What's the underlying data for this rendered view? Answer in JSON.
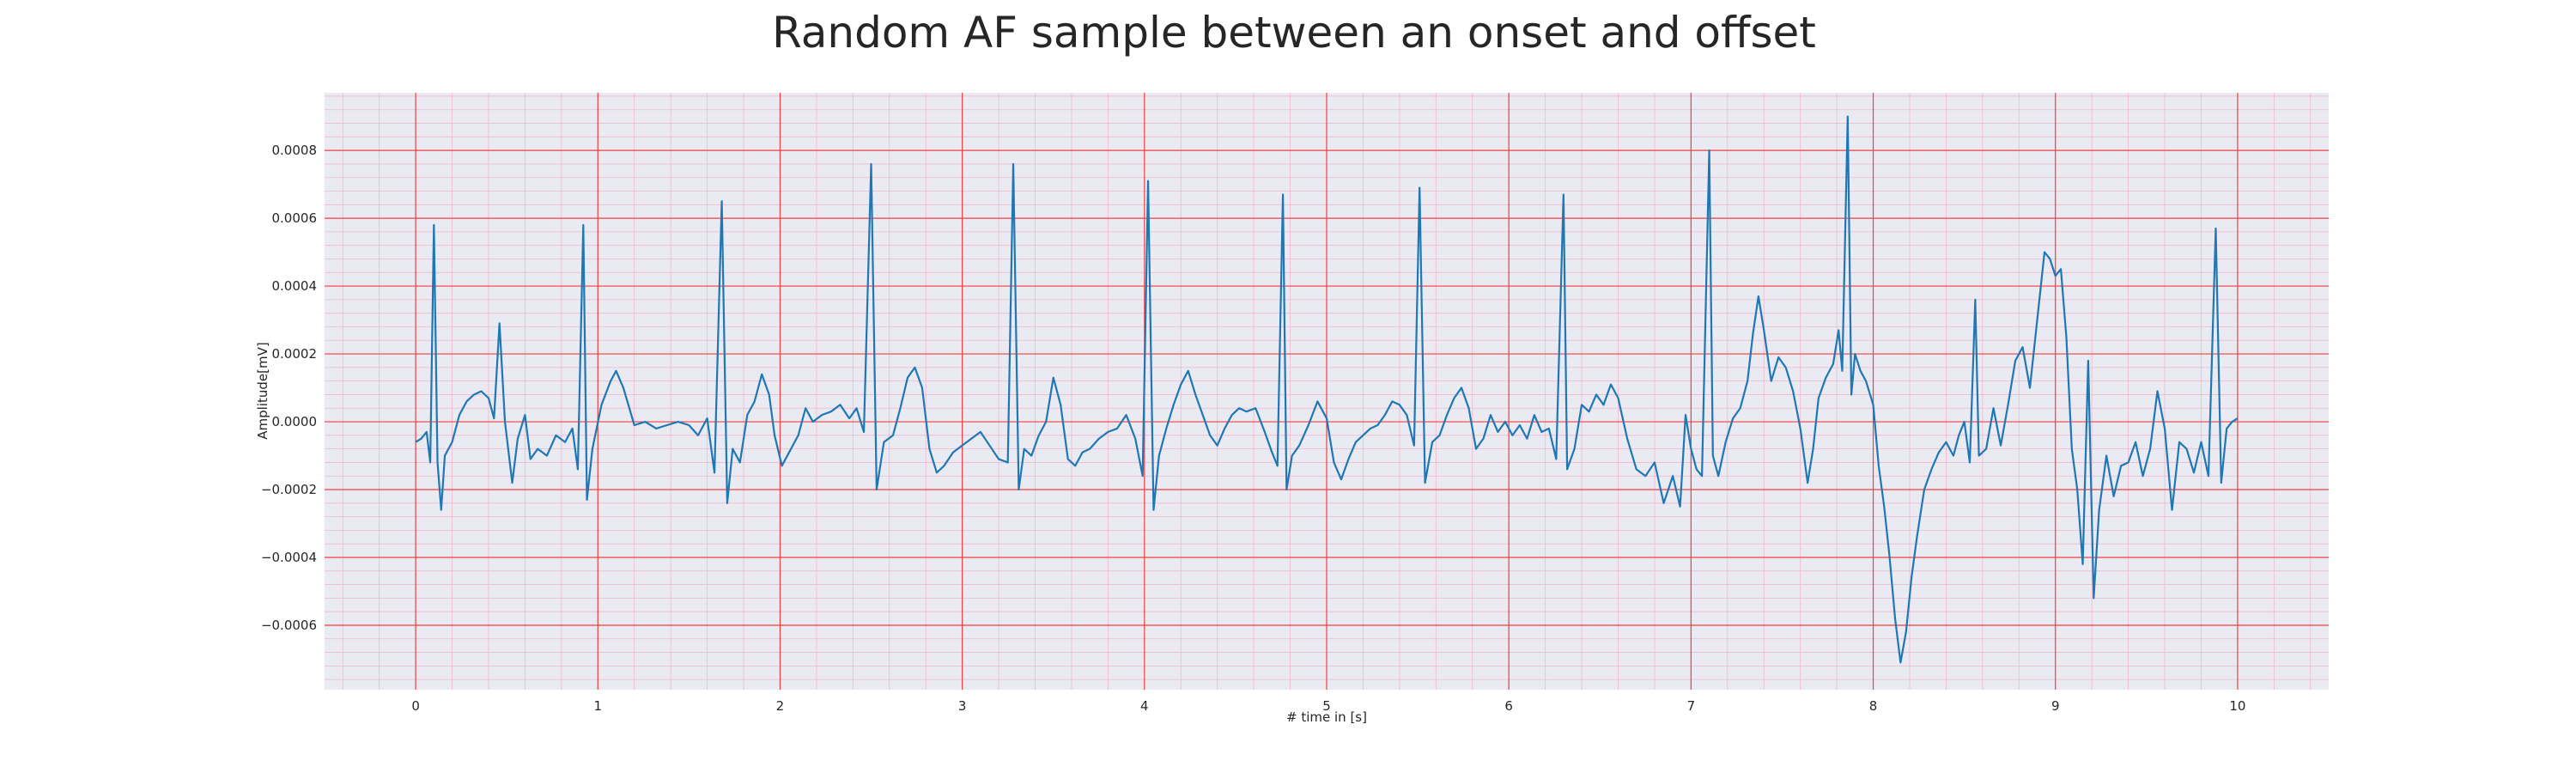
{
  "chart_data": {
    "type": "line",
    "title": "Random AF sample between an onset and offset",
    "xlabel": "# time in [s]",
    "ylabel": "Amplitude[mV]",
    "xlim": [
      -0.5,
      10.5
    ],
    "ylim": [
      -0.00079,
      0.00097
    ],
    "x_ticks": [
      0,
      1,
      2,
      3,
      4,
      5,
      6,
      7,
      8,
      9,
      10
    ],
    "x_tick_labels": [
      "0",
      "1",
      "2",
      "3",
      "4",
      "5",
      "6",
      "7",
      "8",
      "9",
      "10"
    ],
    "y_ticks": [
      -0.0006,
      -0.0004,
      -0.0002,
      0.0,
      0.0002,
      0.0004,
      0.0006,
      0.0008
    ],
    "y_tick_labels": [
      "−0.0006",
      "−0.0004",
      "−0.0002",
      "0.0000",
      "0.0002",
      "0.0004",
      "0.0006",
      "0.0008"
    ],
    "grid": true,
    "colors": {
      "line": "#1f77b4",
      "plot_bg": "#eaeaf2",
      "major_grid": "#f04040",
      "minor_grid": "#f2b8cc"
    },
    "series": [
      {
        "points": [
          [
            0.0,
            -6e-05
          ],
          [
            0.03,
            -5e-05
          ],
          [
            0.06,
            -3e-05
          ],
          [
            0.08,
            -0.00012
          ],
          [
            0.1,
            0.00058
          ],
          [
            0.12,
            -0.00012
          ],
          [
            0.14,
            -0.00026
          ],
          [
            0.16,
            -0.0001
          ],
          [
            0.2,
            -6e-05
          ],
          [
            0.24,
            2e-05
          ],
          [
            0.28,
            6e-05
          ],
          [
            0.32,
            8e-05
          ],
          [
            0.36,
            9e-05
          ],
          [
            0.4,
            7e-05
          ],
          [
            0.43,
            1e-05
          ],
          [
            0.46,
            0.00029
          ],
          [
            0.49,
            0.0
          ],
          [
            0.53,
            -0.00018
          ],
          [
            0.56,
            -5e-05
          ],
          [
            0.6,
            2e-05
          ],
          [
            0.63,
            -0.00011
          ],
          [
            0.67,
            -8e-05
          ],
          [
            0.72,
            -0.0001
          ],
          [
            0.77,
            -4e-05
          ],
          [
            0.82,
            -6e-05
          ],
          [
            0.86,
            -2e-05
          ],
          [
            0.89,
            -0.00014
          ],
          [
            0.92,
            0.00058
          ],
          [
            0.94,
            -0.00023
          ],
          [
            0.97,
            -8e-05
          ],
          [
            1.02,
            5e-05
          ],
          [
            1.07,
            0.00012
          ],
          [
            1.1,
            0.00015
          ],
          [
            1.14,
            0.0001
          ],
          [
            1.2,
            -1e-05
          ],
          [
            1.26,
            0.0
          ],
          [
            1.32,
            -2e-05
          ],
          [
            1.38,
            -1e-05
          ],
          [
            1.44,
            0.0
          ],
          [
            1.5,
            -1e-05
          ],
          [
            1.55,
            -4e-05
          ],
          [
            1.6,
            1e-05
          ],
          [
            1.64,
            -0.00015
          ],
          [
            1.68,
            0.00065
          ],
          [
            1.71,
            -0.00024
          ],
          [
            1.74,
            -8e-05
          ],
          [
            1.78,
            -0.00012
          ],
          [
            1.82,
            2e-05
          ],
          [
            1.86,
            6e-05
          ],
          [
            1.9,
            0.00014
          ],
          [
            1.94,
            8e-05
          ],
          [
            1.97,
            -4e-05
          ],
          [
            2.01,
            -0.00013
          ],
          [
            2.05,
            -9e-05
          ],
          [
            2.1,
            -4e-05
          ],
          [
            2.14,
            4e-05
          ],
          [
            2.18,
            0.0
          ],
          [
            2.23,
            2e-05
          ],
          [
            2.28,
            3e-05
          ],
          [
            2.33,
            5e-05
          ],
          [
            2.38,
            1e-05
          ],
          [
            2.42,
            4e-05
          ],
          [
            2.46,
            -3e-05
          ],
          [
            2.5,
            0.00076
          ],
          [
            2.53,
            -0.0002
          ],
          [
            2.57,
            -6e-05
          ],
          [
            2.62,
            -4e-05
          ],
          [
            2.66,
            4e-05
          ],
          [
            2.7,
            0.00013
          ],
          [
            2.74,
            0.00016
          ],
          [
            2.78,
            0.0001
          ],
          [
            2.82,
            -8e-05
          ],
          [
            2.86,
            -0.00015
          ],
          [
            2.9,
            -0.00013
          ],
          [
            2.95,
            -9e-05
          ],
          [
            3.0,
            -7e-05
          ],
          [
            3.05,
            -5e-05
          ],
          [
            3.1,
            -3e-05
          ],
          [
            3.15,
            -7e-05
          ],
          [
            3.2,
            -0.00011
          ],
          [
            3.25,
            -0.00012
          ],
          [
            3.28,
            0.00076
          ],
          [
            3.31,
            -0.0002
          ],
          [
            3.34,
            -8e-05
          ],
          [
            3.38,
            -0.0001
          ],
          [
            3.42,
            -4e-05
          ],
          [
            3.46,
            0.0
          ],
          [
            3.5,
            0.00013
          ],
          [
            3.54,
            5e-05
          ],
          [
            3.58,
            -0.00011
          ],
          [
            3.62,
            -0.00013
          ],
          [
            3.66,
            -9e-05
          ],
          [
            3.7,
            -8e-05
          ],
          [
            3.75,
            -5e-05
          ],
          [
            3.8,
            -3e-05
          ],
          [
            3.85,
            -2e-05
          ],
          [
            3.9,
            2e-05
          ],
          [
            3.95,
            -5e-05
          ],
          [
            3.99,
            -0.00016
          ],
          [
            4.02,
            0.00071
          ],
          [
            4.05,
            -0.00026
          ],
          [
            4.08,
            -0.0001
          ],
          [
            4.12,
            -2e-05
          ],
          [
            4.16,
            5e-05
          ],
          [
            4.2,
            0.00011
          ],
          [
            4.24,
            0.00015
          ],
          [
            4.28,
            8e-05
          ],
          [
            4.32,
            2e-05
          ],
          [
            4.36,
            -4e-05
          ],
          [
            4.4,
            -7e-05
          ],
          [
            4.44,
            -2e-05
          ],
          [
            4.48,
            2e-05
          ],
          [
            4.52,
            4e-05
          ],
          [
            4.56,
            3e-05
          ],
          [
            4.61,
            4e-05
          ],
          [
            4.66,
            -3e-05
          ],
          [
            4.7,
            -9e-05
          ],
          [
            4.73,
            -0.00013
          ],
          [
            4.76,
            0.00067
          ],
          [
            4.78,
            -0.0002
          ],
          [
            4.81,
            -0.0001
          ],
          [
            4.85,
            -7e-05
          ],
          [
            4.9,
            -1e-05
          ],
          [
            4.95,
            6e-05
          ],
          [
            5.0,
            1e-05
          ],
          [
            5.04,
            -0.00012
          ],
          [
            5.08,
            -0.00017
          ],
          [
            5.12,
            -0.00011
          ],
          [
            5.16,
            -6e-05
          ],
          [
            5.2,
            -4e-05
          ],
          [
            5.24,
            -2e-05
          ],
          [
            5.28,
            -1e-05
          ],
          [
            5.32,
            2e-05
          ],
          [
            5.36,
            6e-05
          ],
          [
            5.4,
            5e-05
          ],
          [
            5.44,
            2e-05
          ],
          [
            5.48,
            -7e-05
          ],
          [
            5.51,
            0.00069
          ],
          [
            5.54,
            -0.00018
          ],
          [
            5.58,
            -6e-05
          ],
          [
            5.62,
            -4e-05
          ],
          [
            5.66,
            2e-05
          ],
          [
            5.7,
            7e-05
          ],
          [
            5.74,
            0.0001
          ],
          [
            5.78,
            4e-05
          ],
          [
            5.82,
            -8e-05
          ],
          [
            5.86,
            -5e-05
          ],
          [
            5.9,
            2e-05
          ],
          [
            5.94,
            -3e-05
          ],
          [
            5.98,
            0.0
          ],
          [
            6.02,
            -4e-05
          ],
          [
            6.06,
            -1e-05
          ],
          [
            6.1,
            -5e-05
          ],
          [
            6.14,
            2e-05
          ],
          [
            6.18,
            -3e-05
          ],
          [
            6.22,
            -2e-05
          ],
          [
            6.26,
            -0.00011
          ],
          [
            6.3,
            0.00067
          ],
          [
            6.32,
            -0.00014
          ],
          [
            6.36,
            -8e-05
          ],
          [
            6.4,
            5e-05
          ],
          [
            6.44,
            3e-05
          ],
          [
            6.48,
            8e-05
          ],
          [
            6.52,
            5e-05
          ],
          [
            6.56,
            0.00011
          ],
          [
            6.6,
            7e-05
          ],
          [
            6.65,
            -5e-05
          ],
          [
            6.7,
            -0.00014
          ],
          [
            6.75,
            -0.00016
          ],
          [
            6.8,
            -0.00012
          ],
          [
            6.85,
            -0.00024
          ],
          [
            6.9,
            -0.00016
          ],
          [
            6.94,
            -0.00025
          ],
          [
            6.97,
            2e-05
          ],
          [
            7.0,
            -8e-05
          ],
          [
            7.03,
            -0.00014
          ],
          [
            7.06,
            -0.00016
          ],
          [
            7.1,
            0.0008
          ],
          [
            7.12,
            -0.0001
          ],
          [
            7.15,
            -0.00016
          ],
          [
            7.19,
            -6e-05
          ],
          [
            7.23,
            1e-05
          ],
          [
            7.27,
            4e-05
          ],
          [
            7.31,
            0.00012
          ],
          [
            7.34,
            0.00026
          ],
          [
            7.37,
            0.00037
          ],
          [
            7.4,
            0.00027
          ],
          [
            7.44,
            0.00012
          ],
          [
            7.48,
            0.00019
          ],
          [
            7.52,
            0.00016
          ],
          [
            7.56,
            9e-05
          ],
          [
            7.6,
            -2e-05
          ],
          [
            7.64,
            -0.00018
          ],
          [
            7.67,
            -8e-05
          ],
          [
            7.7,
            7e-05
          ],
          [
            7.74,
            0.00013
          ],
          [
            7.78,
            0.00017
          ],
          [
            7.81,
            0.00027
          ],
          [
            7.83,
            0.00015
          ],
          [
            7.86,
            0.0009
          ],
          [
            7.88,
            8e-05
          ],
          [
            7.9,
            0.0002
          ],
          [
            7.93,
            0.00015
          ],
          [
            7.96,
            0.00012
          ],
          [
            8.0,
            5e-05
          ],
          [
            8.03,
            -0.00013
          ],
          [
            8.06,
            -0.00025
          ],
          [
            8.09,
            -0.0004
          ],
          [
            8.12,
            -0.00058
          ],
          [
            8.15,
            -0.00071
          ],
          [
            8.18,
            -0.00062
          ],
          [
            8.21,
            -0.00046
          ],
          [
            8.24,
            -0.00034
          ],
          [
            8.28,
            -0.0002
          ],
          [
            8.32,
            -0.00014
          ],
          [
            8.36,
            -9e-05
          ],
          [
            8.4,
            -6e-05
          ],
          [
            8.44,
            -0.0001
          ],
          [
            8.47,
            -4e-05
          ],
          [
            8.5,
            0.0
          ],
          [
            8.53,
            -0.00012
          ],
          [
            8.56,
            0.00036
          ],
          [
            8.58,
            -0.0001
          ],
          [
            8.62,
            -8e-05
          ],
          [
            8.66,
            4e-05
          ],
          [
            8.7,
            -7e-05
          ],
          [
            8.74,
            5e-05
          ],
          [
            8.78,
            0.00018
          ],
          [
            8.82,
            0.00022
          ],
          [
            8.86,
            0.0001
          ],
          [
            8.9,
            0.0003
          ],
          [
            8.94,
            0.0005
          ],
          [
            8.97,
            0.00048
          ],
          [
            9.0,
            0.00043
          ],
          [
            9.03,
            0.00045
          ],
          [
            9.06,
            0.00025
          ],
          [
            9.09,
            -8e-05
          ],
          [
            9.12,
            -0.0002
          ],
          [
            9.15,
            -0.00042
          ],
          [
            9.18,
            0.00018
          ],
          [
            9.21,
            -0.00052
          ],
          [
            9.24,
            -0.00026
          ],
          [
            9.28,
            -0.0001
          ],
          [
            9.32,
            -0.00022
          ],
          [
            9.36,
            -0.00013
          ],
          [
            9.4,
            -0.00012
          ],
          [
            9.44,
            -6e-05
          ],
          [
            9.48,
            -0.00016
          ],
          [
            9.52,
            -8e-05
          ],
          [
            9.56,
            9e-05
          ],
          [
            9.6,
            -2e-05
          ],
          [
            9.64,
            -0.00026
          ],
          [
            9.68,
            -6e-05
          ],
          [
            9.72,
            -8e-05
          ],
          [
            9.76,
            -0.00015
          ],
          [
            9.8,
            -6e-05
          ],
          [
            9.84,
            -0.00016
          ],
          [
            9.88,
            0.00057
          ],
          [
            9.91,
            -0.00018
          ],
          [
            9.94,
            -2e-05
          ],
          [
            9.97,
            0.0
          ],
          [
            10.0,
            1e-05
          ]
        ]
      }
    ]
  }
}
